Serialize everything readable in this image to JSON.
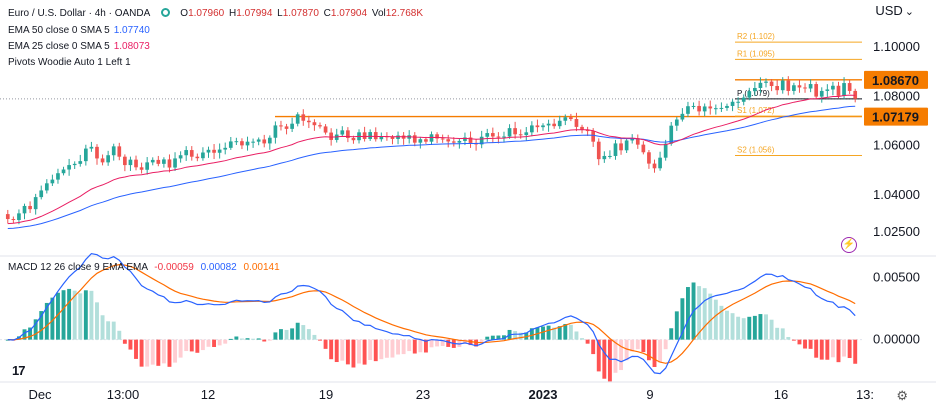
{
  "header": {
    "symbol": "Euro / U.S. Dollar · 4h · OANDA",
    "ohlc": [
      {
        "label": "O",
        "value": "1.07960"
      },
      {
        "label": "H",
        "value": "1.07994"
      },
      {
        "label": "L",
        "value": "1.07870"
      },
      {
        "label": "C",
        "value": "1.07904"
      },
      {
        "label": "Vol",
        "value": "12.768K"
      }
    ],
    "indicators": [
      {
        "label": "EMA 50 close 0 SMA 5",
        "value": "1.07740",
        "color": "#2962ff"
      },
      {
        "label": "EMA 25 close 0 SMA 5",
        "value": "1.08073",
        "color": "#e91e63"
      },
      {
        "label": "Pivots Woodie Auto 1 Left 1",
        "value": "",
        "color": "#131722"
      }
    ],
    "currency": "USD"
  },
  "macd_legend": {
    "label": "MACD 12 26 close 9 EMA EMA",
    "values": [
      {
        "value": "-0.00059",
        "color": "#f23645"
      },
      {
        "value": "0.00082",
        "color": "#2962ff"
      },
      {
        "value": "0.00141",
        "color": "#ff6d00"
      }
    ]
  },
  "chart_data": [
    {
      "type": "candlestick",
      "title": "Euro / U.S. Dollar · 4h · OANDA",
      "x_ticks": [
        "Dec",
        "13:00",
        "12",
        "19",
        "23",
        "2023",
        "9",
        "16",
        "13:"
      ],
      "y_ticks": [
        "1.10000",
        "1.08000",
        "1.06000",
        "1.04000",
        "1.02500"
      ],
      "ylim": [
        1.016,
        1.111
      ],
      "price_tags": [
        {
          "value": "1.08670",
          "color": "#f57c00"
        },
        {
          "value": "1.07179",
          "color": "#f57c00"
        }
      ],
      "horizontal_lines": [
        {
          "name": "resistance",
          "value": 1.0867,
          "color": "#f57c00"
        },
        {
          "name": "support",
          "value": 1.07179,
          "color": "#f57c00"
        }
      ],
      "pivots": [
        {
          "label": "R2 (1.102)",
          "value": 1.102
        },
        {
          "label": "R1 (1.095)",
          "value": 1.095
        },
        {
          "label": "P (1.079)",
          "value": 1.079
        },
        {
          "label": "S1 (1.072)",
          "value": 1.072
        },
        {
          "label": "S2 (1.056)",
          "value": 1.056
        }
      ],
      "closes": [
        1.0302,
        1.0298,
        1.0325,
        1.0355,
        1.0342,
        1.0391,
        1.0418,
        1.0447,
        1.0462,
        1.0488,
        1.0503,
        1.0521,
        1.0526,
        1.0537,
        1.0588,
        1.0595,
        1.0548,
        1.0532,
        1.0561,
        1.0597,
        1.0555,
        1.0521,
        1.0543,
        1.0512,
        1.0502,
        1.0532,
        1.0542,
        1.0526,
        1.0544,
        1.0511,
        1.0548,
        1.0561,
        1.0582,
        1.0555,
        1.0549,
        1.0572,
        1.0583,
        1.0571,
        1.0584,
        1.0591,
        1.0617,
        1.0618,
        1.0601,
        1.0616,
        1.0616,
        1.0625,
        1.0609,
        1.0632,
        1.0682,
        1.0678,
        1.0668,
        1.0689,
        1.0727,
        1.0701,
        1.0695,
        1.0683,
        1.0678,
        1.0653,
        1.0623,
        1.0645,
        1.0662,
        1.0631,
        1.0622,
        1.0654,
        1.0627,
        1.0655,
        1.0626,
        1.0638,
        1.0635,
        1.0627,
        1.0641,
        1.0628,
        1.0642,
        1.0612,
        1.0626,
        1.0616,
        1.0646,
        1.0629,
        1.0626,
        1.0617,
        1.0612,
        1.0619,
        1.0633,
        1.0611,
        1.0605,
        1.0636,
        1.0651,
        1.0637,
        1.0635,
        1.0637,
        1.0671,
        1.0646,
        1.0643,
        1.0654,
        1.0682,
        1.0675,
        1.0682,
        1.0689,
        1.0679,
        1.0701,
        1.0715,
        1.0708,
        1.0676,
        1.0665,
        1.0659,
        1.0616,
        1.0545,
        1.0558,
        1.0558,
        1.0609,
        1.0581,
        1.0621,
        1.063,
        1.0604,
        1.0573,
        1.0527,
        1.0508,
        1.0551,
        1.0608,
        1.0681,
        1.0706,
        1.0729,
        1.076,
        1.0761,
        1.0739,
        1.0759,
        1.0751,
        1.0752,
        1.0753,
        1.0761,
        1.0778,
        1.0778,
        1.0795,
        1.0821,
        1.0834,
        1.0855,
        1.086,
        1.0842,
        1.0825,
        1.0864,
        1.0822,
        1.0845,
        1.0836,
        1.0832,
        1.085,
        1.0799,
        1.0822,
        1.0828,
        1.0843,
        1.0802,
        1.0854,
        1.0822,
        1.079
      ],
      "ema_fast": {
        "name": "EMA 25",
        "color": "#e91e63"
      },
      "ema_slow": {
        "name": "EMA 50",
        "color": "#2962ff"
      }
    },
    {
      "type": "macd",
      "title": "MACD 12 26 close 9 EMA EMA",
      "y_ticks": [
        "0.00500",
        "0.00000"
      ],
      "ylim": [
        -0.0026,
        0.0064
      ],
      "macd_line": {
        "name": "MACD",
        "color": "#2962ff"
      },
      "signal_line": {
        "name": "Signal",
        "color": "#ff6d00"
      },
      "histogram_colors": {
        "pos_strong": "#26a69a",
        "pos_weak": "#b2dfdb",
        "neg_strong": "#ff5252",
        "neg_weak": "#ffcdd2"
      }
    }
  ]
}
